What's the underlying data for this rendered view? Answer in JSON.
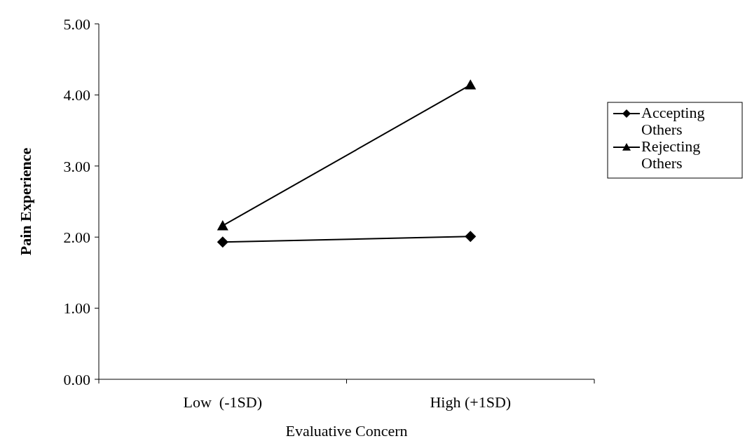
{
  "chart_data": {
    "type": "line",
    "xlabel": "Evaluative Concern",
    "ylabel": "Pain Experience",
    "categories": [
      "Low  (-1SD)",
      "High (+1SD)"
    ],
    "series": [
      {
        "name": "Accepting Others",
        "color": "#000000",
        "values": [
          1.93,
          2.01
        ],
        "marker": "diamond"
      },
      {
        "name": "Rejecting Others",
        "color": "#000000",
        "values": [
          2.16,
          4.14
        ],
        "marker": "triangle"
      }
    ],
    "ylim": [
      0,
      5
    ],
    "yticks": [
      {
        "value": 0,
        "label": "0.00"
      },
      {
        "value": 1,
        "label": "1.00"
      },
      {
        "value": 2,
        "label": "2.00"
      },
      {
        "value": 3,
        "label": "3.00"
      },
      {
        "value": 4,
        "label": "4.00"
      },
      {
        "value": 5,
        "label": "5.00"
      }
    ],
    "grid": false,
    "legend": "right",
    "line_style": "solid"
  }
}
